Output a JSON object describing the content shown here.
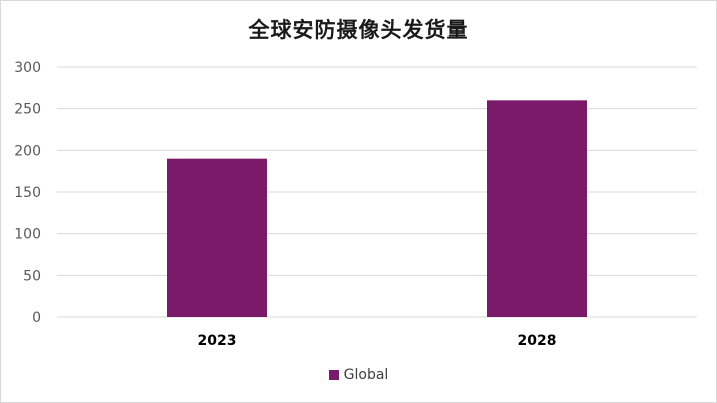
{
  "chart_data": {
    "type": "bar",
    "title": "全球安防摄像头发货量",
    "categories": [
      "2023",
      "2028"
    ],
    "series": [
      {
        "name": "Global",
        "values": [
          190,
          260
        ]
      }
    ],
    "ylim": [
      0,
      300
    ],
    "yticks": [
      0,
      50,
      100,
      150,
      200,
      250,
      300
    ],
    "grid": true,
    "legend_position": "bottom",
    "colors": {
      "bar": "#7b1a6b",
      "grid": "#d9d9d9",
      "axis_text": "#595959",
      "category_text": "#000000"
    }
  }
}
